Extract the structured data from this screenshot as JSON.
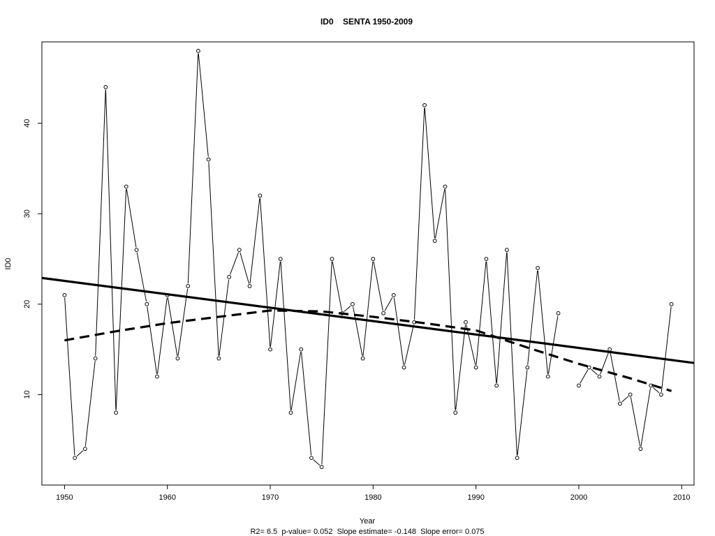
{
  "chart_data": {
    "type": "line",
    "title": "ID0    SENTA 1950-2009",
    "xlabel": "Year",
    "ylabel": "ID0",
    "subtitle": "R2= 6.5  p-value= 0.052  Slope estimate= -0.148  Slope error= 0.075",
    "xlim": [
      1947.8,
      2011.2
    ],
    "ylim": [
      0,
      49
    ],
    "xticks": [
      1950,
      1960,
      1970,
      1980,
      1990,
      2000,
      2010
    ],
    "yticks": [
      10,
      20,
      30,
      40
    ],
    "grid": false,
    "series": [
      {
        "style": "line-points",
        "x": [
          1950,
          1951,
          1952,
          1953,
          1954,
          1955,
          1956,
          1957,
          1958,
          1959,
          1960,
          1961,
          1962,
          1963,
          1964,
          1965,
          1966,
          1967,
          1968,
          1969,
          1970,
          1971,
          1972,
          1973,
          1974,
          1975,
          1976,
          1977,
          1978,
          1979,
          1980,
          1981,
          1982,
          1983,
          1984,
          1985,
          1986,
          1987,
          1988,
          1989,
          1990,
          1991,
          1992,
          1993,
          1994,
          1995,
          1996,
          1997,
          1998,
          1999,
          2000,
          2001,
          2002,
          2003,
          2004,
          2005,
          2006,
          2007,
          2008,
          2009
        ],
        "values": [
          21,
          3,
          4,
          14,
          44,
          8,
          33,
          26,
          20,
          12,
          21,
          14,
          22,
          48,
          36,
          14,
          23,
          26,
          22,
          32,
          15,
          25,
          8,
          15,
          3,
          2,
          25,
          19,
          20,
          14,
          25,
          19,
          21,
          13,
          18,
          42,
          27,
          33,
          8,
          18,
          13,
          25,
          11,
          26,
          3,
          13,
          24,
          12,
          19,
          null,
          11,
          13,
          12,
          15,
          9,
          10,
          4,
          11,
          10,
          20
        ]
      },
      {
        "style": "solid-thick",
        "x": [
          1947.8,
          2011.2
        ],
        "values": [
          22.9,
          13.5
        ]
      },
      {
        "style": "dashed-thick",
        "x": [
          1950,
          1955,
          1960,
          1965,
          1970,
          1975,
          1980,
          1985,
          1990,
          1995,
          2000,
          2005,
          2009
        ],
        "values": [
          16.0,
          17.0,
          17.9,
          18.6,
          19.3,
          19.2,
          18.6,
          17.9,
          17.1,
          15.2,
          13.4,
          11.8,
          10.4
        ]
      }
    ]
  }
}
